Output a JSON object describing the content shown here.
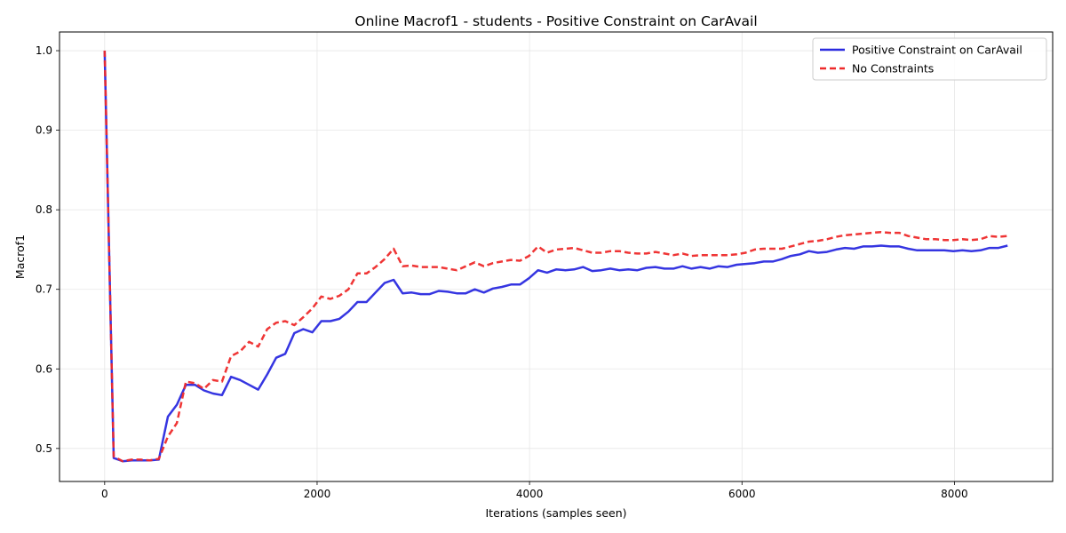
{
  "chart_data": {
    "type": "line",
    "title": "Online Macrof1 - students - Positive Constraint on CarAvail",
    "xlabel": "Iterations (samples seen)",
    "ylabel": "Macrof1",
    "xlim": [
      -425,
      8925
    ],
    "ylim": [
      0.4585,
      1.0235
    ],
    "xticks": [
      0,
      2000,
      4000,
      6000,
      8000
    ],
    "xtick_labels": [
      "0",
      "2000",
      "4000",
      "6000",
      "8000"
    ],
    "yticks": [
      0.5,
      0.6,
      0.7,
      0.8,
      0.9,
      1.0
    ],
    "ytick_labels": [
      "0.5",
      "0.6",
      "0.7",
      "0.8",
      "0.9",
      "1.0"
    ],
    "grid": true,
    "legend_position": "top-right",
    "series": [
      {
        "name": "Positive Constraint on CarAvail",
        "color": "#2a2adf",
        "style": "solid",
        "points": [
          [
            0,
            1.0
          ],
          [
            85,
            0.488
          ],
          [
            170,
            0.484
          ],
          [
            255,
            0.485
          ],
          [
            340,
            0.485
          ],
          [
            425,
            0.485
          ],
          [
            510,
            0.486
          ],
          [
            595,
            0.54
          ],
          [
            680,
            0.555
          ],
          [
            765,
            0.58
          ],
          [
            850,
            0.58
          ],
          [
            935,
            0.573
          ],
          [
            1020,
            0.569
          ],
          [
            1105,
            0.567
          ],
          [
            1190,
            0.59
          ],
          [
            1275,
            0.586
          ],
          [
            1360,
            0.58
          ],
          [
            1445,
            0.574
          ],
          [
            1530,
            0.593
          ],
          [
            1615,
            0.614
          ],
          [
            1700,
            0.619
          ],
          [
            1785,
            0.645
          ],
          [
            1870,
            0.65
          ],
          [
            1955,
            0.646
          ],
          [
            2040,
            0.66
          ],
          [
            2125,
            0.66
          ],
          [
            2210,
            0.663
          ],
          [
            2295,
            0.672
          ],
          [
            2380,
            0.684
          ],
          [
            2465,
            0.684
          ],
          [
            2550,
            0.696
          ],
          [
            2635,
            0.708
          ],
          [
            2720,
            0.712
          ],
          [
            2805,
            0.695
          ],
          [
            2890,
            0.696
          ],
          [
            2975,
            0.694
          ],
          [
            3060,
            0.694
          ],
          [
            3145,
            0.698
          ],
          [
            3230,
            0.697
          ],
          [
            3315,
            0.695
          ],
          [
            3400,
            0.695
          ],
          [
            3485,
            0.7
          ],
          [
            3570,
            0.696
          ],
          [
            3655,
            0.701
          ],
          [
            3740,
            0.703
          ],
          [
            3825,
            0.706
          ],
          [
            3910,
            0.706
          ],
          [
            3995,
            0.714
          ],
          [
            4080,
            0.724
          ],
          [
            4165,
            0.721
          ],
          [
            4250,
            0.725
          ],
          [
            4335,
            0.724
          ],
          [
            4420,
            0.725
          ],
          [
            4505,
            0.728
          ],
          [
            4590,
            0.723
          ],
          [
            4675,
            0.724
          ],
          [
            4760,
            0.726
          ],
          [
            4845,
            0.724
          ],
          [
            4930,
            0.725
          ],
          [
            5015,
            0.724
          ],
          [
            5100,
            0.727
          ],
          [
            5185,
            0.728
          ],
          [
            5270,
            0.726
          ],
          [
            5355,
            0.726
          ],
          [
            5440,
            0.729
          ],
          [
            5525,
            0.726
          ],
          [
            5610,
            0.728
          ],
          [
            5695,
            0.726
          ],
          [
            5780,
            0.729
          ],
          [
            5865,
            0.728
          ],
          [
            5950,
            0.731
          ],
          [
            6035,
            0.732
          ],
          [
            6120,
            0.733
          ],
          [
            6205,
            0.735
          ],
          [
            6290,
            0.735
          ],
          [
            6375,
            0.738
          ],
          [
            6460,
            0.742
          ],
          [
            6545,
            0.744
          ],
          [
            6630,
            0.748
          ],
          [
            6715,
            0.746
          ],
          [
            6800,
            0.747
          ],
          [
            6885,
            0.75
          ],
          [
            6970,
            0.752
          ],
          [
            7055,
            0.751
          ],
          [
            7140,
            0.754
          ],
          [
            7225,
            0.754
          ],
          [
            7310,
            0.755
          ],
          [
            7395,
            0.754
          ],
          [
            7480,
            0.754
          ],
          [
            7565,
            0.751
          ],
          [
            7650,
            0.749
          ],
          [
            7735,
            0.749
          ],
          [
            7820,
            0.749
          ],
          [
            7905,
            0.749
          ],
          [
            7990,
            0.748
          ],
          [
            8075,
            0.749
          ],
          [
            8160,
            0.748
          ],
          [
            8245,
            0.749
          ],
          [
            8330,
            0.752
          ],
          [
            8415,
            0.752
          ],
          [
            8500,
            0.755
          ]
        ]
      },
      {
        "name": "No Constraints",
        "color": "#ee2a2a",
        "style": "dashed",
        "points": [
          [
            0,
            1.0
          ],
          [
            85,
            0.49
          ],
          [
            170,
            0.484
          ],
          [
            255,
            0.486
          ],
          [
            340,
            0.486
          ],
          [
            425,
            0.485
          ],
          [
            510,
            0.487
          ],
          [
            595,
            0.515
          ],
          [
            680,
            0.532
          ],
          [
            765,
            0.584
          ],
          [
            850,
            0.582
          ],
          [
            935,
            0.575
          ],
          [
            1020,
            0.586
          ],
          [
            1105,
            0.584
          ],
          [
            1190,
            0.616
          ],
          [
            1275,
            0.622
          ],
          [
            1360,
            0.634
          ],
          [
            1445,
            0.628
          ],
          [
            1530,
            0.65
          ],
          [
            1615,
            0.658
          ],
          [
            1700,
            0.66
          ],
          [
            1785,
            0.655
          ],
          [
            1870,
            0.665
          ],
          [
            1955,
            0.676
          ],
          [
            2040,
            0.691
          ],
          [
            2125,
            0.688
          ],
          [
            2210,
            0.692
          ],
          [
            2295,
            0.7
          ],
          [
            2380,
            0.72
          ],
          [
            2465,
            0.72
          ],
          [
            2550,
            0.728
          ],
          [
            2635,
            0.738
          ],
          [
            2720,
            0.751
          ],
          [
            2805,
            0.729
          ],
          [
            2890,
            0.73
          ],
          [
            2975,
            0.728
          ],
          [
            3060,
            0.728
          ],
          [
            3145,
            0.728
          ],
          [
            3230,
            0.726
          ],
          [
            3315,
            0.724
          ],
          [
            3400,
            0.729
          ],
          [
            3485,
            0.734
          ],
          [
            3570,
            0.729
          ],
          [
            3655,
            0.733
          ],
          [
            3740,
            0.735
          ],
          [
            3825,
            0.737
          ],
          [
            3910,
            0.736
          ],
          [
            3995,
            0.742
          ],
          [
            4080,
            0.754
          ],
          [
            4165,
            0.746
          ],
          [
            4250,
            0.75
          ],
          [
            4335,
            0.751
          ],
          [
            4420,
            0.752
          ],
          [
            4505,
            0.749
          ],
          [
            4590,
            0.746
          ],
          [
            4675,
            0.746
          ],
          [
            4760,
            0.748
          ],
          [
            4845,
            0.748
          ],
          [
            4930,
            0.746
          ],
          [
            5015,
            0.745
          ],
          [
            5100,
            0.745
          ],
          [
            5185,
            0.747
          ],
          [
            5270,
            0.745
          ],
          [
            5355,
            0.743
          ],
          [
            5440,
            0.745
          ],
          [
            5525,
            0.742
          ],
          [
            5610,
            0.743
          ],
          [
            5695,
            0.743
          ],
          [
            5780,
            0.743
          ],
          [
            5865,
            0.743
          ],
          [
            5950,
            0.744
          ],
          [
            6035,
            0.746
          ],
          [
            6120,
            0.75
          ],
          [
            6205,
            0.751
          ],
          [
            6290,
            0.751
          ],
          [
            6375,
            0.751
          ],
          [
            6460,
            0.754
          ],
          [
            6545,
            0.757
          ],
          [
            6630,
            0.76
          ],
          [
            6715,
            0.761
          ],
          [
            6800,
            0.763
          ],
          [
            6885,
            0.766
          ],
          [
            6970,
            0.768
          ],
          [
            7055,
            0.769
          ],
          [
            7140,
            0.77
          ],
          [
            7225,
            0.771
          ],
          [
            7310,
            0.772
          ],
          [
            7395,
            0.771
          ],
          [
            7480,
            0.771
          ],
          [
            7565,
            0.767
          ],
          [
            7650,
            0.765
          ],
          [
            7735,
            0.763
          ],
          [
            7820,
            0.763
          ],
          [
            7905,
            0.762
          ],
          [
            7990,
            0.762
          ],
          [
            8075,
            0.763
          ],
          [
            8160,
            0.762
          ],
          [
            8245,
            0.763
          ],
          [
            8330,
            0.767
          ],
          [
            8415,
            0.766
          ],
          [
            8500,
            0.767
          ]
        ]
      }
    ]
  }
}
